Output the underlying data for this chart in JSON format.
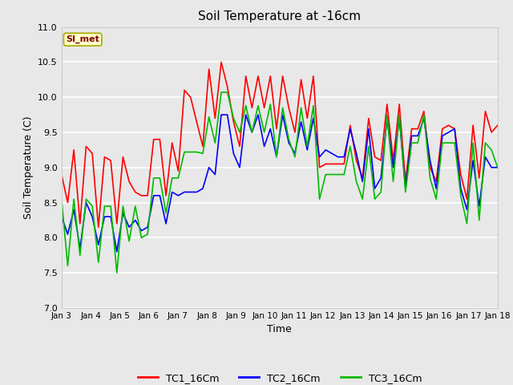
{
  "title": "Soil Temperature at -16cm",
  "xlabel": "Time",
  "ylabel": "Soil Temperature (C)",
  "ylim": [
    7.0,
    11.0
  ],
  "yticks": [
    7.0,
    7.5,
    8.0,
    8.5,
    9.0,
    9.5,
    10.0,
    10.5,
    11.0
  ],
  "xtick_labels": [
    "Jan 3",
    "Jan 4",
    "Jan 5",
    "Jan 6",
    "Jan 7",
    "Jan 8",
    "Jan 9",
    "Jan 10",
    "Jan 11",
    "Jan 12",
    "Jan 13",
    "Jan 14",
    "Jan 15",
    "Jan 16",
    "Jan 17",
    "Jan 18"
  ],
  "legend_label": "SI_met",
  "series": {
    "TC1_16Cm": {
      "color": "#ff0000",
      "data": [
        8.9,
        8.5,
        9.25,
        8.2,
        9.3,
        9.2,
        8.15,
        9.15,
        9.1,
        8.2,
        9.15,
        8.8,
        8.65,
        8.6,
        8.6,
        9.4,
        9.4,
        8.6,
        9.35,
        8.95,
        10.1,
        10.0,
        9.65,
        9.3,
        10.4,
        9.7,
        10.5,
        10.15,
        9.65,
        9.3,
        10.3,
        9.85,
        10.3,
        9.85,
        10.3,
        9.55,
        10.3,
        9.85,
        9.5,
        10.25,
        9.7,
        10.3,
        9.0,
        9.05,
        9.05,
        9.05,
        9.05,
        9.6,
        9.1,
        8.85,
        9.7,
        9.15,
        9.1,
        9.9,
        9.1,
        9.9,
        8.8,
        9.55,
        9.55,
        9.8,
        9.0,
        8.8,
        9.55,
        9.6,
        9.55,
        8.9,
        8.55,
        9.6,
        8.85,
        9.8,
        9.5,
        9.6
      ]
    },
    "TC2_16Cm": {
      "color": "#0000ff",
      "data": [
        8.3,
        8.05,
        8.4,
        7.85,
        8.5,
        8.3,
        7.9,
        8.3,
        8.3,
        7.8,
        8.35,
        8.15,
        8.25,
        8.1,
        8.15,
        8.6,
        8.6,
        8.2,
        8.65,
        8.6,
        8.65,
        8.65,
        8.65,
        8.7,
        9.0,
        8.9,
        9.75,
        9.75,
        9.2,
        9.0,
        9.75,
        9.5,
        9.75,
        9.3,
        9.55,
        9.15,
        9.75,
        9.35,
        9.2,
        9.65,
        9.25,
        9.7,
        9.15,
        9.25,
        9.2,
        9.15,
        9.15,
        9.55,
        9.2,
        8.8,
        9.55,
        8.7,
        8.85,
        9.7,
        9.0,
        9.7,
        8.7,
        9.45,
        9.45,
        9.7,
        9.1,
        8.7,
        9.45,
        9.5,
        9.55,
        8.7,
        8.4,
        9.1,
        8.45,
        9.15,
        9.0,
        9.0
      ]
    },
    "TC3_16Cm": {
      "color": "#00bb00",
      "data": [
        8.55,
        7.6,
        8.55,
        7.75,
        8.55,
        8.45,
        7.65,
        8.45,
        8.45,
        7.5,
        8.45,
        7.95,
        8.45,
        8.0,
        8.05,
        8.85,
        8.85,
        8.35,
        8.85,
        8.85,
        9.22,
        9.22,
        9.22,
        9.2,
        9.72,
        9.35,
        10.07,
        10.07,
        9.7,
        9.5,
        9.88,
        9.5,
        9.88,
        9.5,
        9.9,
        9.15,
        9.85,
        9.4,
        9.15,
        9.85,
        9.3,
        9.88,
        8.55,
        8.9,
        8.9,
        8.9,
        8.9,
        9.3,
        8.8,
        8.55,
        9.3,
        8.55,
        8.65,
        9.75,
        8.8,
        9.75,
        8.65,
        9.35,
        9.35,
        9.75,
        8.85,
        8.55,
        9.35,
        9.35,
        9.35,
        8.6,
        8.2,
        9.35,
        8.25,
        9.35,
        9.25,
        9.0
      ]
    }
  },
  "n_points": 72,
  "fig_bg_color": "#e8e8e8",
  "plot_bg_color": "#e8e8e8",
  "grid_color": "#ffffff",
  "title_fontsize": 11,
  "axis_label_fontsize": 9,
  "tick_fontsize": 8,
  "line_width": 1.2,
  "legend_fontsize": 9,
  "annot_fontsize": 8,
  "annot_color": "#800000",
  "annot_bg": "#ffffcc",
  "annot_edge": "#aaaa00"
}
